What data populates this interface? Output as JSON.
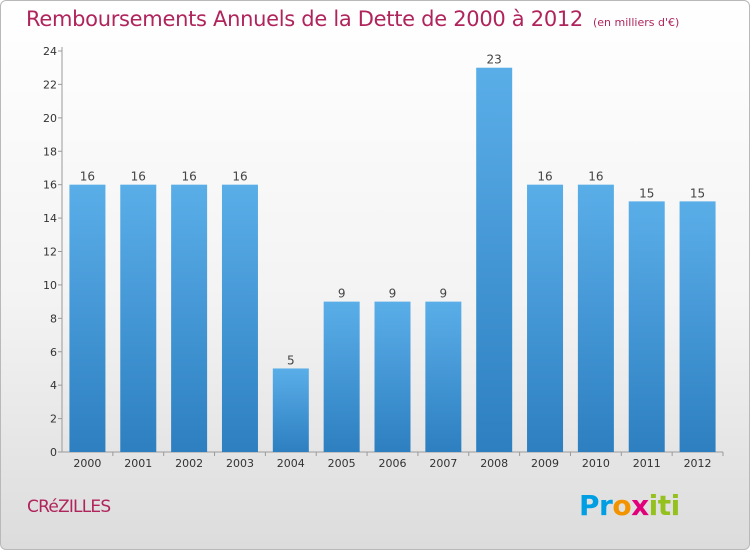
{
  "chart_data": {
    "type": "bar",
    "title": "Remboursements Annuels de la Dette de 2000 à 2012",
    "subtitle": "(en milliers d'€)",
    "categories": [
      "2000",
      "2001",
      "2002",
      "2003",
      "2004",
      "2005",
      "2006",
      "2007",
      "2008",
      "2009",
      "2010",
      "2011",
      "2012"
    ],
    "values": [
      16,
      16,
      16,
      16,
      5,
      9,
      9,
      9,
      23,
      16,
      16,
      15,
      15
    ],
    "ylim": [
      0,
      24
    ],
    "yticks": [
      0,
      2,
      4,
      6,
      8,
      10,
      12,
      14,
      16,
      18,
      20,
      22,
      24
    ],
    "grid": false,
    "bar_color_top": "#5aaee8",
    "bar_color_bottom": "#2d7fc0"
  },
  "footer": {
    "town": "CRéZILLES",
    "logo_parts": [
      "Pr",
      "o",
      "x",
      "iti"
    ]
  }
}
